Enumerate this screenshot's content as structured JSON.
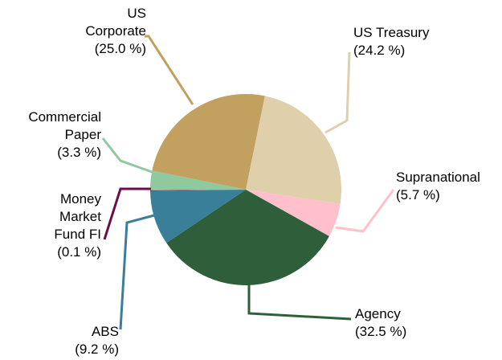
{
  "chart_data": {
    "type": "pie",
    "categories": [
      "US Treasury",
      "Supranational",
      "Agency",
      "ABS",
      "Money Market Fund FI",
      "Commercial Paper",
      "US Corporate"
    ],
    "values": [
      24.2,
      5.7,
      32.5,
      9.2,
      0.1,
      3.3,
      25.0
    ],
    "value_labels": [
      "(24.2 %)",
      "(5.7 %)",
      "(32.5 %)",
      "(9.2 %)",
      "(0.1 %)",
      "(3.3 %)",
      "(25.0 %)"
    ],
    "colors": [
      "#dfcfaa",
      "#ffc0cb",
      "#2f5f3a",
      "#3a7f9a",
      "#6b0f4a",
      "#90c8a0",
      "#c2a060"
    ]
  }
}
